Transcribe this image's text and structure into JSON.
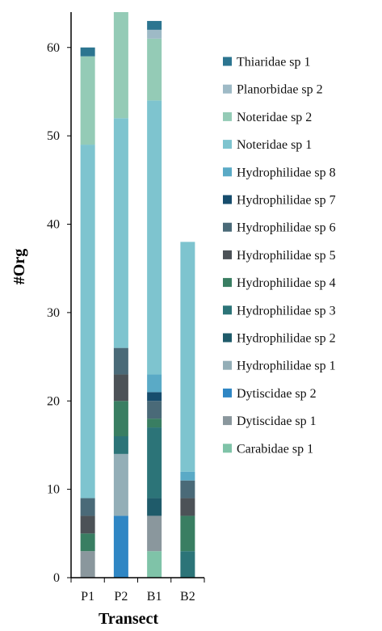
{
  "chart_data": {
    "type": "bar",
    "stacked": true,
    "categories": [
      "P1",
      "P2",
      "B1",
      "B2"
    ],
    "xlabel": "Transect",
    "ylabel": "#Org",
    "ylim": [
      0,
      64
    ],
    "yticks": [
      0,
      10,
      20,
      30,
      40,
      50,
      60
    ],
    "grid": false,
    "legend_position": "right",
    "series": [
      {
        "name": "Carabidae sp 1",
        "color": "#7fc3a8",
        "values": [
          0,
          0,
          3,
          0
        ]
      },
      {
        "name": "Dytiscidae sp 1",
        "color": "#8a979d",
        "values": [
          3,
          0,
          4,
          0
        ]
      },
      {
        "name": "Dytiscidae sp 2",
        "color": "#2f86c4",
        "values": [
          0,
          7,
          0,
          0
        ]
      },
      {
        "name": "Hydrophilidae sp 1",
        "color": "#93aeb7",
        "values": [
          0,
          7,
          0,
          0
        ]
      },
      {
        "name": "Hydrophilidae sp 2",
        "color": "#1f5b6a",
        "values": [
          0,
          0,
          2,
          0
        ]
      },
      {
        "name": "Hydrophilidae sp 3",
        "color": "#2c7478",
        "values": [
          0,
          2,
          8,
          3
        ]
      },
      {
        "name": "Hydrophilidae sp 4",
        "color": "#397e62",
        "values": [
          2,
          4,
          1,
          4
        ]
      },
      {
        "name": "Hydrophilidae sp 5",
        "color": "#4c5257",
        "values": [
          2,
          3,
          0,
          2
        ]
      },
      {
        "name": "Hydrophilidae sp 6",
        "color": "#4a6a78",
        "values": [
          2,
          3,
          2,
          2
        ]
      },
      {
        "name": "Hydrophilidae sp 7",
        "color": "#174d6d",
        "values": [
          0,
          0,
          1,
          0
        ]
      },
      {
        "name": "Hydrophilidae sp 8",
        "color": "#5aaac6",
        "values": [
          0,
          0,
          2,
          1
        ]
      },
      {
        "name": "Noteridae sp 1",
        "color": "#7ec4cf",
        "values": [
          40,
          26,
          31,
          26
        ]
      },
      {
        "name": "Noteridae sp 2",
        "color": "#94cbb6",
        "values": [
          10,
          12,
          7,
          0
        ]
      },
      {
        "name": "Planorbidae sp 2",
        "color": "#9ebac6",
        "values": [
          0,
          0,
          1,
          0
        ]
      },
      {
        "name": "Thiaridae sp 1",
        "color": "#2c7590",
        "values": [
          1,
          0,
          1,
          0
        ]
      }
    ]
  }
}
